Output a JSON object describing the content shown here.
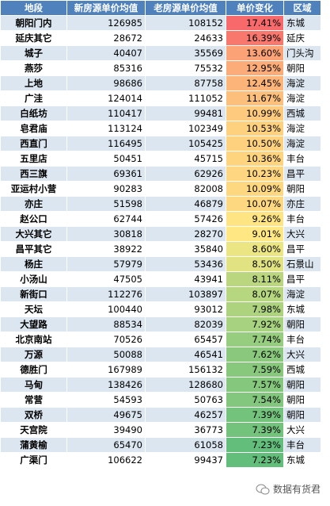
{
  "table": {
    "header": [
      "地段",
      "新房源单价均值",
      "老房源单价均值",
      "单价变化",
      "区域"
    ],
    "rows": [
      [
        "朝阳门内",
        "126985",
        "108152",
        "17.41%",
        "东城"
      ],
      [
        "延庆其它",
        "28672",
        "24633",
        "16.39%",
        "延庆"
      ],
      [
        "城子",
        "40407",
        "35569",
        "13.60%",
        "门头沟"
      ],
      [
        "燕莎",
        "85316",
        "75532",
        "12.95%",
        "朝阳"
      ],
      [
        "上地",
        "98686",
        "87758",
        "12.45%",
        "海淀"
      ],
      [
        "广洼",
        "124014",
        "111052",
        "11.67%",
        "海淀"
      ],
      [
        "白纸坊",
        "110417",
        "99481",
        "10.99%",
        "西城"
      ],
      [
        "皂君庙",
        "113124",
        "102349",
        "10.53%",
        "海淀"
      ],
      [
        "西直门",
        "116495",
        "105425",
        "10.50%",
        "海淀"
      ],
      [
        "五里店",
        "50451",
        "45715",
        "10.36%",
        "丰台"
      ],
      [
        "西三旗",
        "69361",
        "62926",
        "10.23%",
        "昌平"
      ],
      [
        "亚运村小营",
        "90283",
        "82008",
        "10.09%",
        "朝阳"
      ],
      [
        "亦庄",
        "51598",
        "46879",
        "10.07%",
        "亦庄"
      ],
      [
        "赵公口",
        "62744",
        "57426",
        "9.26%",
        "丰台"
      ],
      [
        "大兴其它",
        "30818",
        "28270",
        "9.01%",
        "大兴"
      ],
      [
        "昌平其它",
        "38922",
        "35840",
        "8.60%",
        "昌平"
      ],
      [
        "杨庄",
        "57979",
        "53436",
        "8.50%",
        "石景山"
      ],
      [
        "小汤山",
        "47505",
        "43941",
        "8.11%",
        "昌平"
      ],
      [
        "新街口",
        "112276",
        "103897",
        "8.07%",
        "海淀"
      ],
      [
        "天坛",
        "100440",
        "93012",
        "7.98%",
        "东城"
      ],
      [
        "大望路",
        "88534",
        "82039",
        "7.92%",
        "朝阳"
      ],
      [
        "北京南站",
        "70526",
        "65457",
        "7.74%",
        "丰台"
      ],
      [
        "万源",
        "50088",
        "46541",
        "7.62%",
        "大兴"
      ],
      [
        "德胜门",
        "167989",
        "156132",
        "7.59%",
        "西城"
      ],
      [
        "马甸",
        "138426",
        "128680",
        "7.57%",
        "朝阳"
      ],
      [
        "常营",
        "54593",
        "50763",
        "7.54%",
        "朝阳"
      ],
      [
        "双桥",
        "49675",
        "46257",
        "7.39%",
        "朝阳"
      ],
      [
        "天宫院",
        "39490",
        "36773",
        "7.39%",
        "大兴"
      ],
      [
        "蒲黄榆",
        "65470",
        "61058",
        "7.23%",
        "丰台"
      ],
      [
        "广渠门",
        "106622",
        "99437",
        "7.23%",
        "东城"
      ]
    ]
  },
  "watermark": "数据有货君"
}
